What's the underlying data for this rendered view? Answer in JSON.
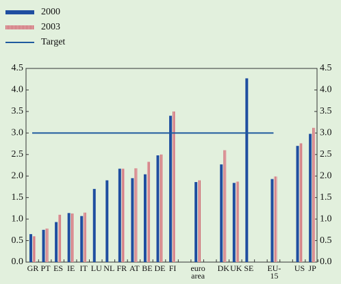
{
  "chart_data": {
    "type": "bar",
    "categories": [
      "GR",
      "PT",
      "ES",
      "IE",
      "IT",
      "LU",
      "NL",
      "FR",
      "AT",
      "BE",
      "DE",
      "FI",
      null,
      "euro area",
      null,
      "DK",
      "UK",
      "SE",
      null,
      "EU-15",
      null,
      "US",
      "JP"
    ],
    "series": [
      {
        "name": "2000",
        "color": "#1f4ea0",
        "values": [
          0.65,
          0.75,
          0.93,
          1.14,
          1.07,
          1.7,
          1.9,
          2.17,
          1.95,
          2.04,
          2.48,
          3.4,
          null,
          1.86,
          null,
          2.27,
          1.84,
          4.27,
          null,
          1.93,
          null,
          2.7,
          2.98
        ]
      },
      {
        "name": "2003",
        "color": "#d98a8e",
        "values": [
          0.6,
          0.78,
          1.1,
          1.13,
          1.15,
          null,
          null,
          2.17,
          2.18,
          2.33,
          2.5,
          3.5,
          null,
          1.9,
          null,
          2.6,
          1.87,
          null,
          null,
          1.99,
          null,
          2.76,
          3.12
        ]
      },
      {
        "name": "Target",
        "type": "line",
        "color": "#1f5a9e",
        "values": [
          3,
          3,
          3,
          3,
          3,
          3,
          3,
          3,
          3,
          3,
          3,
          3,
          3,
          3,
          3,
          3,
          3,
          3,
          3,
          3,
          null,
          null,
          null
        ]
      }
    ],
    "ylim": [
      0,
      4.5
    ],
    "yticks": [
      {
        "value": 0,
        "label": "0.0"
      },
      0.5,
      {
        "value": 1,
        "label": "1.0"
      },
      1.5,
      {
        "value": 2,
        "label": "2.0"
      },
      2.5,
      {
        "value": 3,
        "label": "3.0"
      },
      3.5,
      {
        "value": 4,
        "label": "4.0"
      },
      4.5
    ],
    "legend": "top-left"
  }
}
